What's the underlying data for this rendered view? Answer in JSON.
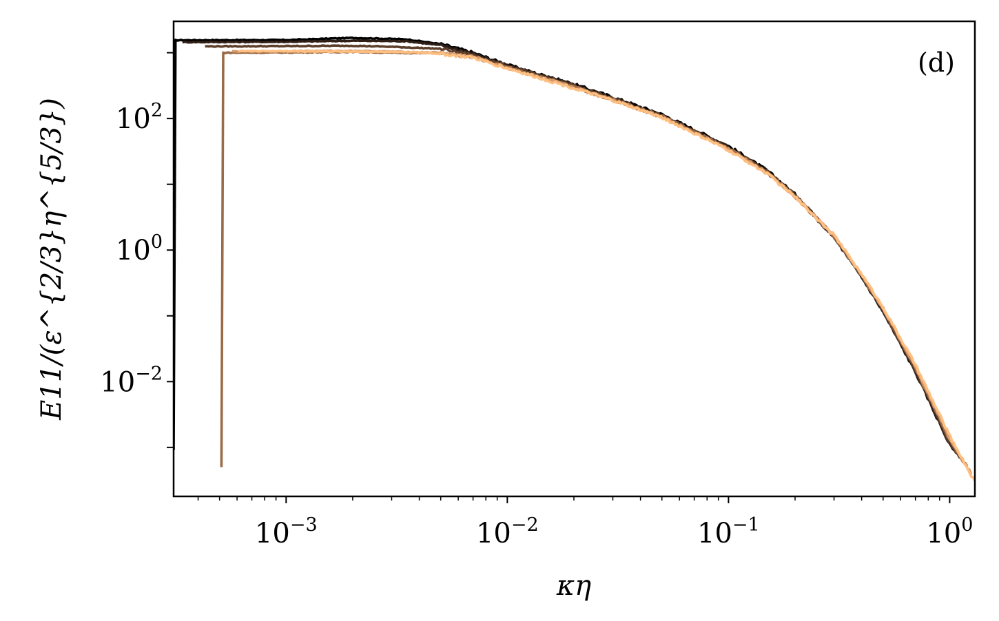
{
  "chart_data": {
    "type": "line",
    "panel_label": "(d)",
    "xlabel": "κη",
    "ylabel": "E11/(ε^{2/3}η^{5/3})",
    "x_scale": "log",
    "y_scale": "log",
    "xlim": [
      0.00031,
      1.3
    ],
    "ylim": [
      0.00018,
      3000
    ],
    "x_ticks": [
      {
        "value": 0.001,
        "base": "10",
        "exp": "−3"
      },
      {
        "value": 0.01,
        "base": "10",
        "exp": "−2"
      },
      {
        "value": 0.1,
        "base": "10",
        "exp": "−1"
      },
      {
        "value": 1,
        "base": "10",
        "exp": "0"
      }
    ],
    "y_ticks": [
      {
        "value": 100,
        "base": "10",
        "exp": "2"
      },
      {
        "value": 1,
        "base": "10",
        "exp": "0"
      },
      {
        "value": 0.01,
        "base": "10",
        "exp": "−2"
      }
    ],
    "grid": false,
    "legend": false,
    "series": [
      {
        "color": "#000000",
        "x_start": 0.00031,
        "x_end": 1.05,
        "low_level": 1550,
        "points": [
          [
            0.00031,
            1550
          ],
          [
            0.001,
            1560
          ],
          [
            0.002,
            1680
          ],
          [
            0.0035,
            1600
          ],
          [
            0.005,
            1350
          ],
          [
            0.007,
            1000
          ],
          [
            0.01,
            650
          ],
          [
            0.02,
            330
          ],
          [
            0.03,
            210
          ],
          [
            0.05,
            115
          ],
          [
            0.1,
            38
          ],
          [
            0.15,
            16
          ],
          [
            0.2,
            7
          ],
          [
            0.3,
            1.6
          ],
          [
            0.4,
            0.4
          ],
          [
            0.5,
            0.12
          ],
          [
            0.7,
            0.015
          ],
          [
            1.0,
            0.0012
          ],
          [
            1.05,
            0.0009
          ]
        ]
      },
      {
        "color": "#2e1e15",
        "x_start": 0.00034,
        "x_end": 1.1,
        "low_level": 1450,
        "points": [
          [
            0.00034,
            1450
          ],
          [
            0.001,
            1470
          ],
          [
            0.002,
            1520
          ],
          [
            0.0035,
            1500
          ],
          [
            0.005,
            1300
          ],
          [
            0.007,
            980
          ],
          [
            0.01,
            640
          ],
          [
            0.02,
            325
          ],
          [
            0.03,
            205
          ],
          [
            0.05,
            112
          ],
          [
            0.1,
            37
          ],
          [
            0.15,
            15.5
          ],
          [
            0.2,
            6.8
          ],
          [
            0.3,
            1.55
          ],
          [
            0.4,
            0.39
          ],
          [
            0.5,
            0.115
          ],
          [
            0.7,
            0.014
          ],
          [
            1.0,
            0.0011
          ],
          [
            1.1,
            0.0008
          ]
        ]
      },
      {
        "color": "#5d3e2a",
        "x_start": 0.00043,
        "x_end": 1.15,
        "low_level": 1250,
        "points": [
          [
            0.00043,
            1250
          ],
          [
            0.001,
            1260
          ],
          [
            0.002,
            1280
          ],
          [
            0.003,
            1230
          ],
          [
            0.005,
            1150
          ],
          [
            0.007,
            920
          ],
          [
            0.01,
            620
          ],
          [
            0.02,
            315
          ],
          [
            0.03,
            200
          ],
          [
            0.05,
            110
          ],
          [
            0.1,
            36
          ],
          [
            0.15,
            15.5
          ],
          [
            0.2,
            6.8
          ],
          [
            0.3,
            1.6
          ],
          [
            0.4,
            0.4
          ],
          [
            0.5,
            0.12
          ],
          [
            0.7,
            0.015
          ],
          [
            1.0,
            0.0012
          ],
          [
            1.15,
            0.0006
          ]
        ]
      },
      {
        "color": "#9b6a47",
        "x_start": 0.00051,
        "x_end": 1.2,
        "low_level": 1000,
        "points": [
          [
            0.00051,
            1000
          ],
          [
            0.001,
            1010
          ],
          [
            0.002,
            1030
          ],
          [
            0.003,
            1000
          ],
          [
            0.005,
            980
          ],
          [
            0.007,
            860
          ],
          [
            0.01,
            600
          ],
          [
            0.02,
            300
          ],
          [
            0.03,
            195
          ],
          [
            0.05,
            108
          ],
          [
            0.1,
            35
          ],
          [
            0.15,
            15
          ],
          [
            0.2,
            6.6
          ],
          [
            0.3,
            1.6
          ],
          [
            0.4,
            0.41
          ],
          [
            0.5,
            0.125
          ],
          [
            0.7,
            0.016
          ],
          [
            1.0,
            0.0013
          ],
          [
            1.2,
            0.0005
          ]
        ]
      },
      {
        "color": "#d79b6b",
        "x_start": 0.00057,
        "x_end": 1.25,
        "low_level": 1050,
        "points": [
          [
            0.00057,
            1050
          ],
          [
            0.001,
            1060
          ],
          [
            0.002,
            1070
          ],
          [
            0.003,
            1040
          ],
          [
            0.005,
            1000
          ],
          [
            0.007,
            870
          ],
          [
            0.01,
            590
          ],
          [
            0.02,
            295
          ],
          [
            0.03,
            192
          ],
          [
            0.05,
            106
          ],
          [
            0.1,
            34
          ],
          [
            0.15,
            14.8
          ],
          [
            0.2,
            6.5
          ],
          [
            0.3,
            1.65
          ],
          [
            0.4,
            0.42
          ],
          [
            0.5,
            0.13
          ],
          [
            0.7,
            0.017
          ],
          [
            1.0,
            0.0014
          ],
          [
            1.25,
            0.0004
          ]
        ]
      },
      {
        "color": "#ffbf80",
        "x_start": 0.00061,
        "x_end": 1.3,
        "low_level": 1060,
        "points": [
          [
            0.00061,
            1060
          ],
          [
            0.001,
            1050
          ],
          [
            0.002,
            1040
          ],
          [
            0.003,
            1030
          ],
          [
            0.004,
            1010
          ],
          [
            0.005,
            960
          ],
          [
            0.007,
            840
          ],
          [
            0.01,
            580
          ],
          [
            0.02,
            290
          ],
          [
            0.03,
            188
          ],
          [
            0.05,
            104
          ],
          [
            0.1,
            33
          ],
          [
            0.15,
            14.5
          ],
          [
            0.2,
            6.4
          ],
          [
            0.3,
            1.7
          ],
          [
            0.4,
            0.43
          ],
          [
            0.5,
            0.135
          ],
          [
            0.7,
            0.018
          ],
          [
            1.0,
            0.0015
          ],
          [
            1.3,
            0.0003
          ]
        ]
      }
    ]
  }
}
